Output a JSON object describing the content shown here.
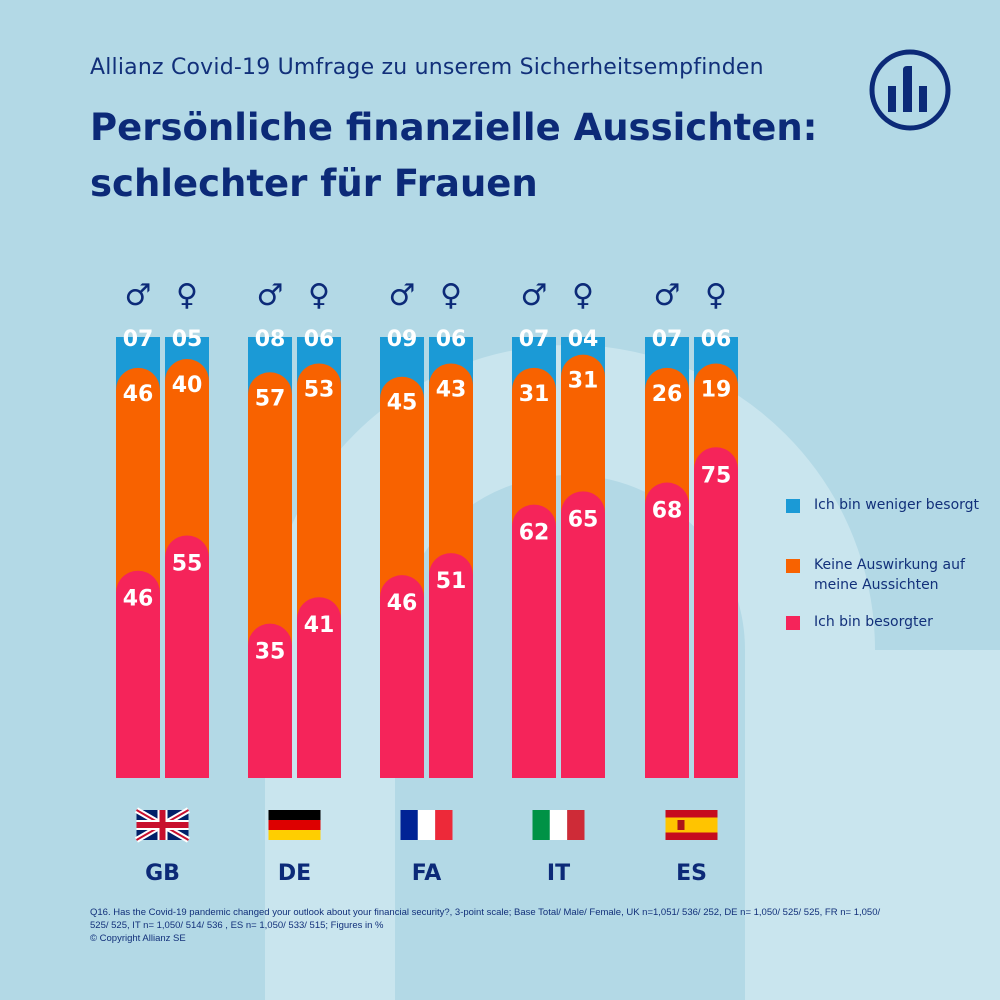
{
  "header": {
    "subtitle": "Allianz Covid-19 Umfrage zu unserem Sicherheitsempfinden",
    "title_line1": "Persönliche finanzielle Aussichten:",
    "title_line2": "schlechter für Frauen"
  },
  "chart_data": {
    "type": "bar",
    "stacked": true,
    "title": "Persönliche finanzielle Aussichten: schlechter für Frauen",
    "unit": "%",
    "categories": [
      "GB",
      "DE",
      "FA",
      "IT",
      "ES"
    ],
    "genders": [
      "♂",
      "♀"
    ],
    "series": [
      {
        "name": "Ich bin weniger besorgt",
        "color": "#1b9ad6",
        "labels": [
          [
            "07",
            "05"
          ],
          [
            "08",
            "06"
          ],
          [
            "09",
            "06"
          ],
          [
            "07",
            "04"
          ],
          [
            "07",
            "06"
          ]
        ],
        "values": [
          [
            7,
            5
          ],
          [
            8,
            6
          ],
          [
            9,
            6
          ],
          [
            7,
            4
          ],
          [
            7,
            6
          ]
        ]
      },
      {
        "name": "Keine Auswirkung auf meine Aussichten",
        "color": "#f86200",
        "labels": [
          [
            "46",
            "40"
          ],
          [
            "57",
            "53"
          ],
          [
            "45",
            "43"
          ],
          [
            "31",
            "31"
          ],
          [
            "26",
            "19"
          ]
        ],
        "values": [
          [
            46,
            40
          ],
          [
            57,
            53
          ],
          [
            45,
            43
          ],
          [
            31,
            31
          ],
          [
            26,
            19
          ]
        ]
      },
      {
        "name": "Ich bin besorgter",
        "color": "#f5245a",
        "labels": [
          [
            "46",
            "55"
          ],
          [
            "35",
            "41"
          ],
          [
            "46",
            "51"
          ],
          [
            "62",
            "65"
          ],
          [
            "68",
            "75"
          ]
        ],
        "values": [
          [
            46,
            55
          ],
          [
            35,
            41
          ],
          [
            46,
            51
          ],
          [
            62,
            65
          ],
          [
            68,
            75
          ]
        ]
      }
    ],
    "flags": [
      "uk",
      "de",
      "fr",
      "it",
      "es"
    ]
  },
  "legend": {
    "items": [
      {
        "label": "Ich bin weniger besorgt",
        "color": "#1b9ad6"
      },
      {
        "label": "Keine Auswirkung auf meine Aussichten",
        "color": "#f86200"
      },
      {
        "label": "Ich bin besorgter",
        "color": "#f5245a"
      }
    ]
  },
  "footnote": {
    "line1": "Q16. Has the Covid-19 pandemic changed your outlook about your financial security?, 3-point scale; Base Total/ Male/ Female, UK n=1,051/ 536/ 252, DE n= 1,050/ 525/ 525, FR n= 1,050/",
    "line2": "525/ 525, IT n= 1,050/ 514/ 536 , ES n= 1,050/ 533/ 515; Figures in %",
    "line3": "© Copyright Allianz SE"
  },
  "colors": {
    "background": "#b3d9e6",
    "navy": "#0c2a78"
  }
}
